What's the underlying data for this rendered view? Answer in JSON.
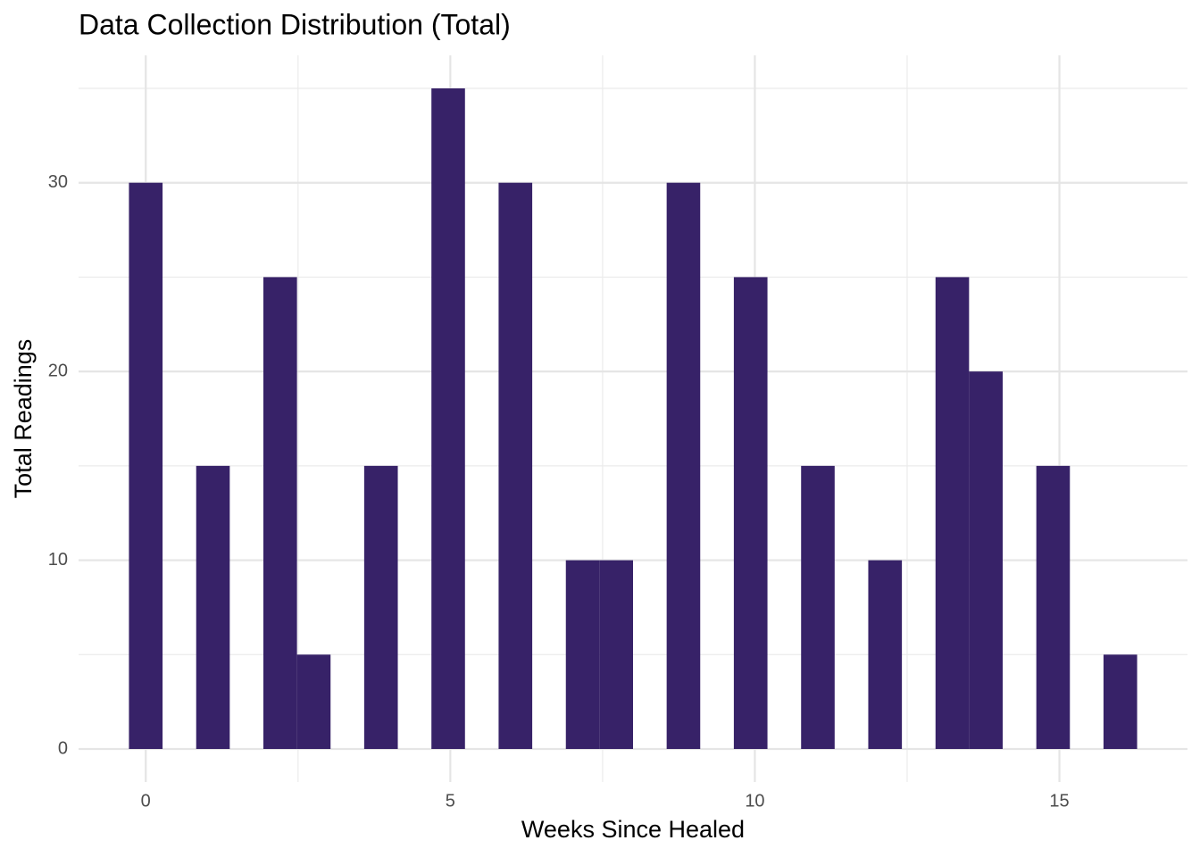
{
  "chart_data": {
    "type": "histogram",
    "title": "Data Collection Distribution (Total)",
    "x_label": "Weeks Since Healed",
    "y_label": "Total Readings",
    "bins": [
      -0.276,
      0.276,
      0.828,
      1.379,
      1.931,
      2.483,
      3.034,
      3.586,
      4.138,
      4.69,
      5.241,
      5.793,
      6.345,
      6.897,
      7.448,
      8.0,
      8.552,
      9.103,
      9.655,
      10.207,
      10.759,
      11.31,
      11.862,
      12.414,
      12.966,
      13.517,
      14.069,
      14.621,
      15.172,
      15.724,
      16.276
    ],
    "values": [
      30,
      0,
      15,
      0,
      25,
      5,
      0,
      15,
      0,
      35,
      0,
      30,
      0,
      10,
      10,
      0,
      30,
      0,
      25,
      0,
      15,
      0,
      10,
      0,
      25,
      20,
      0,
      15,
      0,
      5
    ],
    "color": "#372268",
    "xlim": [
      -1.103,
      17.103
    ],
    "ylim": [
      -1.75,
      36.75
    ],
    "xticks": [
      0,
      5,
      10,
      15
    ],
    "yticks": [
      0,
      10,
      20,
      30
    ],
    "x_minor_grid": [
      2.5,
      7.5,
      12.5
    ],
    "y_minor_grid": [
      5,
      15,
      25,
      35
    ],
    "grid": true
  }
}
